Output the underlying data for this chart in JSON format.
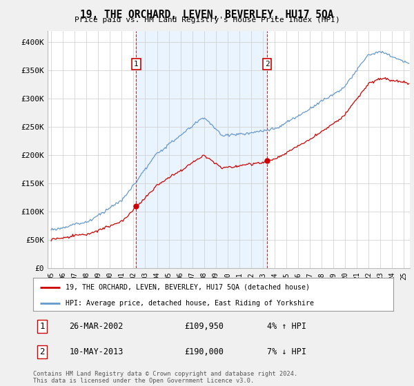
{
  "title": "19, THE ORCHARD, LEVEN, BEVERLEY, HU17 5QA",
  "subtitle": "Price paid vs. HM Land Registry's House Price Index (HPI)",
  "ylabel_ticks": [
    "£0",
    "£50K",
    "£100K",
    "£150K",
    "£200K",
    "£250K",
    "£300K",
    "£350K",
    "£400K"
  ],
  "ytick_values": [
    0,
    50000,
    100000,
    150000,
    200000,
    250000,
    300000,
    350000,
    400000
  ],
  "ylim": [
    0,
    420000
  ],
  "xlim_start": 1995.0,
  "xlim_end": 2025.5,
  "purchase1": {
    "date_num": 2002.23,
    "price": 109950,
    "label": "1"
  },
  "purchase2": {
    "date_num": 2013.36,
    "price": 190000,
    "label": "2"
  },
  "vline1": 2002.23,
  "vline2": 2013.36,
  "line_color_property": "#cc0000",
  "line_color_hpi": "#6699cc",
  "shade_color": "#ddeeff",
  "legend_property": "19, THE ORCHARD, LEVEN, BEVERLEY, HU17 5QA (detached house)",
  "legend_hpi": "HPI: Average price, detached house, East Riding of Yorkshire",
  "table_row1": [
    "1",
    "26-MAR-2002",
    "£109,950",
    "4% ↑ HPI"
  ],
  "table_row2": [
    "2",
    "10-MAY-2013",
    "£190,000",
    "7% ↓ HPI"
  ],
  "footer": "Contains HM Land Registry data © Crown copyright and database right 2024.\nThis data is licensed under the Open Government Licence v3.0.",
  "bg_color": "#f0f0f0",
  "plot_bg_color": "#ffffff",
  "grid_color": "#cccccc"
}
